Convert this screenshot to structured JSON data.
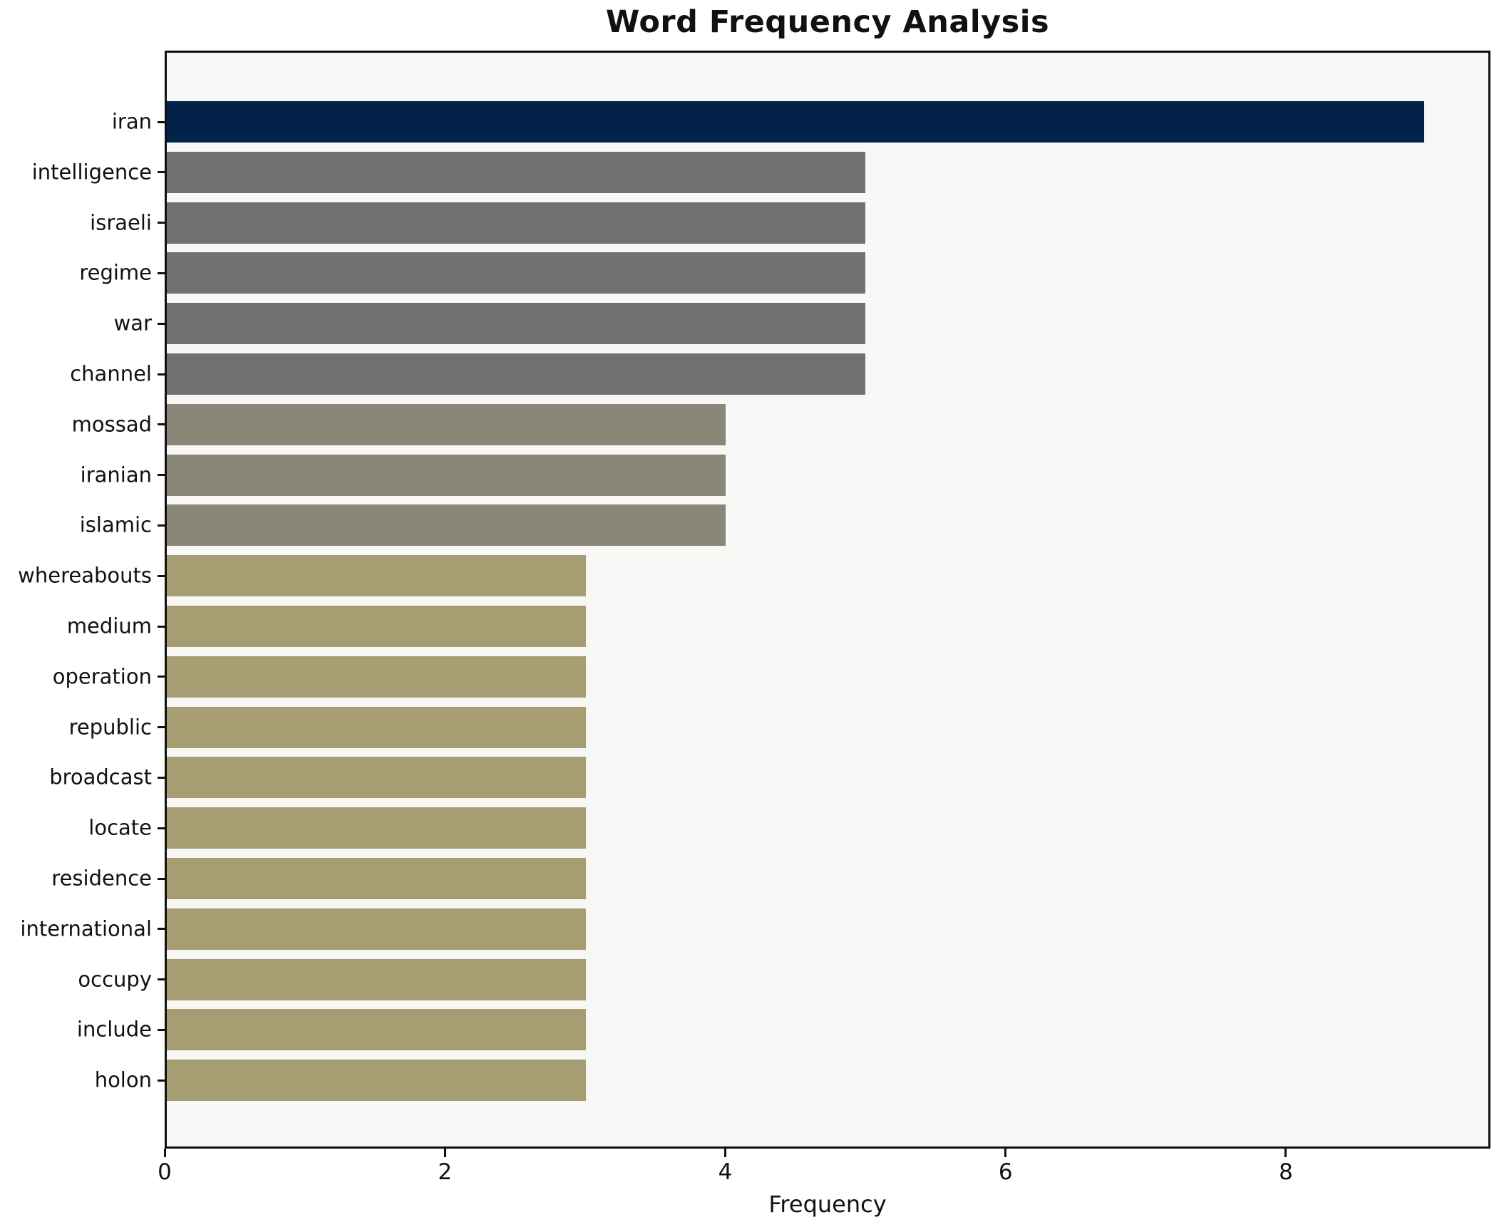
{
  "title": "Word Frequency Analysis",
  "chart_data": {
    "type": "bar",
    "orientation": "horizontal",
    "title": "Word Frequency Analysis",
    "xlabel": "Frequency",
    "ylabel": "",
    "xlim": [
      0,
      9.46
    ],
    "xticks": [
      0,
      2,
      4,
      6,
      8
    ],
    "grid": false,
    "legend": "none",
    "plot_background": "#f7f7f5",
    "spine_color": "#111111",
    "palette": {
      "navy": "#032249",
      "gray": "#6f7071",
      "olive_gray": "#8a8678",
      "khaki": "#a69d72"
    },
    "series": [
      {
        "label": "iran",
        "value": 9,
        "color": "#032249"
      },
      {
        "label": "intelligence",
        "value": 5,
        "color": "#6f7071"
      },
      {
        "label": "israeli",
        "value": 5,
        "color": "#6f7071"
      },
      {
        "label": "regime",
        "value": 5,
        "color": "#6f7071"
      },
      {
        "label": "war",
        "value": 5,
        "color": "#6f7071"
      },
      {
        "label": "channel",
        "value": 5,
        "color": "#6f7071"
      },
      {
        "label": "mossad",
        "value": 4,
        "color": "#8a8678"
      },
      {
        "label": "iranian",
        "value": 4,
        "color": "#8a8678"
      },
      {
        "label": "islamic",
        "value": 4,
        "color": "#8a8678"
      },
      {
        "label": "whereabouts",
        "value": 3,
        "color": "#a69d72"
      },
      {
        "label": "medium",
        "value": 3,
        "color": "#a69d72"
      },
      {
        "label": "operation",
        "value": 3,
        "color": "#a69d72"
      },
      {
        "label": "republic",
        "value": 3,
        "color": "#a69d72"
      },
      {
        "label": "broadcast",
        "value": 3,
        "color": "#a69d72"
      },
      {
        "label": "locate",
        "value": 3,
        "color": "#a69d72"
      },
      {
        "label": "residence",
        "value": 3,
        "color": "#a69d72"
      },
      {
        "label": "international",
        "value": 3,
        "color": "#a69d72"
      },
      {
        "label": "occupy",
        "value": 3,
        "color": "#a69d72"
      },
      {
        "label": "include",
        "value": 3,
        "color": "#a69d72"
      },
      {
        "label": "holon",
        "value": 3,
        "color": "#a69d72"
      }
    ]
  }
}
